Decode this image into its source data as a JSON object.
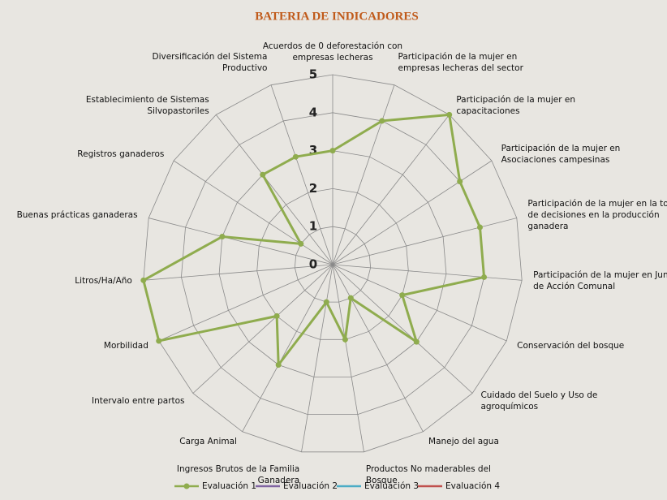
{
  "chart_data": {
    "type": "radar",
    "title": "BATERIA DE INDICADORES",
    "categories": [
      "Acuerdos de 0 deforestación con empresas lecheras",
      "Participación de la mujer en empresas lecheras del sector",
      "Participación de la mujer en capacitaciones",
      "Participación de la mujer en Asociaciones campesinas",
      "Participación de la mujer en la toma de decisiones en la producción ganadera",
      "Participación de la mujer en Juntas de Acción Comunal",
      "Conservación del bosque",
      "Cuidado del Suelo y Uso de agroquímicos",
      "Manejo del agua",
      "Productos No maderables del Bosque",
      "Ingresos Brutos de la Familia Ganadera",
      "Carga Animal",
      "Intervalo entre partos",
      "Morbilidad",
      "Litros/Ha/Año",
      "Buenas prácticas ganaderas",
      "Registros ganaderos",
      "Establecimiento de Sistemas Silvopastoriles",
      "Diversificación del Sistema Productivo"
    ],
    "series": [
      {
        "name": "Evaluación 1",
        "color": "#8fac4e",
        "values": [
          3,
          4,
          5,
          4,
          4,
          4,
          2,
          3,
          1,
          2,
          1,
          3,
          2,
          5,
          5,
          3,
          1,
          3,
          3
        ]
      },
      {
        "name": "Evaluación 2",
        "color": "#8064a2",
        "values": [
          null,
          null,
          null,
          null,
          null,
          null,
          null,
          null,
          null,
          null,
          null,
          null,
          null,
          null,
          null,
          null,
          null,
          null,
          null
        ]
      },
      {
        "name": "Evaluación 3",
        "color": "#4bacc6",
        "values": [
          null,
          null,
          null,
          null,
          null,
          null,
          null,
          null,
          null,
          null,
          null,
          null,
          null,
          null,
          null,
          null,
          null,
          null,
          null
        ]
      },
      {
        "name": "Evaluación 4",
        "color": "#c0504d",
        "values": [
          null,
          null,
          null,
          null,
          null,
          null,
          null,
          null,
          null,
          null,
          null,
          null,
          null,
          null,
          null,
          null,
          null,
          null,
          null
        ]
      }
    ],
    "ylim": [
      0,
      5
    ],
    "yticks": [
      0,
      1,
      2,
      3,
      4,
      5
    ],
    "grid": true,
    "legend": "bottom"
  }
}
